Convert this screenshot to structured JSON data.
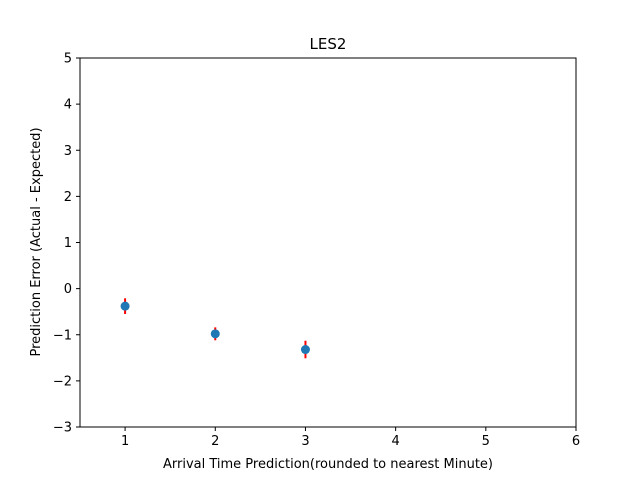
{
  "chart_data": {
    "type": "scatter",
    "title": "LES2",
    "xlabel": "Arrival Time Prediction(rounded to nearest Minute)",
    "ylabel": "Prediction Error (Actual - Expected)",
    "xlim": [
      0.5,
      6
    ],
    "ylim": [
      -3,
      5
    ],
    "xticks": [
      1,
      2,
      3,
      4,
      5,
      6
    ],
    "yticks": [
      -3,
      -2,
      -1,
      0,
      1,
      2,
      3,
      4,
      5
    ],
    "grid": false,
    "series": [
      {
        "x": [
          1,
          2,
          3
        ],
        "y": [
          -0.38,
          -0.98,
          -1.32
        ],
        "yerr": [
          0.17,
          0.14,
          0.19
        ],
        "marker_color": "#1f77b4",
        "error_color": "#ff0000"
      }
    ]
  }
}
